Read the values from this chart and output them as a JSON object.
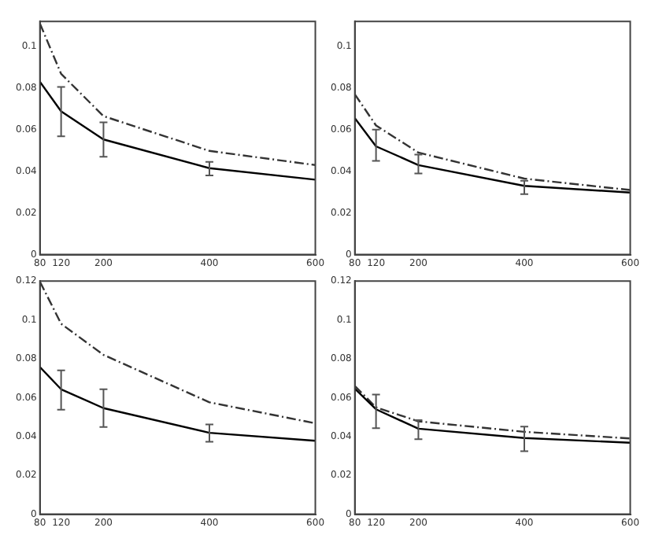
{
  "chart_data": [
    {
      "type": "line",
      "x": [
        80,
        120,
        200,
        400,
        600
      ],
      "xlim": [
        80,
        600
      ],
      "xticks": [
        80,
        120,
        200,
        400,
        600
      ],
      "ylim": [
        0,
        0.112
      ],
      "yticks": [
        0,
        0.02,
        0.04,
        0.06,
        0.08,
        0.1
      ],
      "grid": false,
      "legend": false,
      "marker": "none",
      "series": [
        {
          "color": "#000000",
          "line_style": "solid",
          "values": [
            0.083,
            0.0688,
            0.0553,
            0.0415,
            0.036
          ],
          "errors": [
            null,
            [
              0.0568,
              0.0805
            ],
            [
              0.047,
              0.0635
            ],
            [
              0.038,
              0.0445
            ],
            null
          ]
        },
        {
          "color": "#333333",
          "line_style": "dashed",
          "values": [
            0.111,
            0.0868,
            0.0665,
            0.0498,
            0.043
          ]
        }
      ]
    },
    {
      "type": "line",
      "x": [
        80,
        120,
        200,
        400,
        600
      ],
      "xlim": [
        80,
        600
      ],
      "xticks": [
        80,
        120,
        200,
        400,
        600
      ],
      "ylim": [
        0,
        0.112
      ],
      "yticks": [
        0,
        0.02,
        0.04,
        0.06,
        0.08,
        0.1
      ],
      "grid": false,
      "legend": false,
      "marker": "none",
      "series": [
        {
          "color": "#000000",
          "line_style": "solid",
          "values": [
            0.0655,
            0.052,
            0.043,
            0.033,
            0.0298
          ],
          "errors": [
            null,
            [
              0.045,
              0.06
            ],
            [
              0.039,
              0.048
            ],
            [
              0.029,
              0.0355
            ],
            null
          ]
        },
        {
          "color": "#333333",
          "line_style": "dashed",
          "values": [
            0.077,
            0.062,
            0.049,
            0.0365,
            0.031
          ]
        }
      ]
    },
    {
      "type": "line",
      "x": [
        80,
        120,
        200,
        400,
        600
      ],
      "xlim": [
        80,
        600
      ],
      "xticks": [
        80,
        120,
        200,
        400,
        600
      ],
      "ylim": [
        0,
        0.12
      ],
      "yticks": [
        0,
        0.02,
        0.04,
        0.06,
        0.08,
        0.1,
        0.12
      ],
      "grid": false,
      "legend": false,
      "marker": "none",
      "series": [
        {
          "color": "#000000",
          "line_style": "solid",
          "values": [
            0.0757,
            0.0643,
            0.0546,
            0.0419,
            0.0378
          ],
          "errors": [
            null,
            [
              0.0538,
              0.074
            ],
            [
              0.0449,
              0.0643
            ],
            [
              0.0373,
              0.0462
            ],
            null
          ]
        },
        {
          "color": "#333333",
          "line_style": "dashed",
          "values": [
            0.1197,
            0.098,
            0.082,
            0.0576,
            0.0468
          ]
        }
      ]
    },
    {
      "type": "line",
      "x": [
        80,
        120,
        200,
        400,
        600
      ],
      "xlim": [
        80,
        600
      ],
      "xticks": [
        80,
        120,
        200,
        400,
        600
      ],
      "ylim": [
        0,
        0.12
      ],
      "yticks": [
        0,
        0.02,
        0.04,
        0.06,
        0.08,
        0.1,
        0.12
      ],
      "grid": false,
      "legend": false,
      "marker": "none",
      "series": [
        {
          "color": "#000000",
          "line_style": "solid",
          "values": [
            0.0646,
            0.054,
            0.044,
            0.0392,
            0.0368
          ],
          "errors": [
            null,
            [
              0.0443,
              0.0616
            ],
            [
              0.0386,
              0.0484
            ],
            [
              0.0324,
              0.0451
            ],
            null
          ]
        },
        {
          "color": "#333333",
          "line_style": "dashed",
          "values": [
            0.066,
            0.055,
            0.0478,
            0.0424,
            0.039
          ]
        }
      ]
    }
  ]
}
